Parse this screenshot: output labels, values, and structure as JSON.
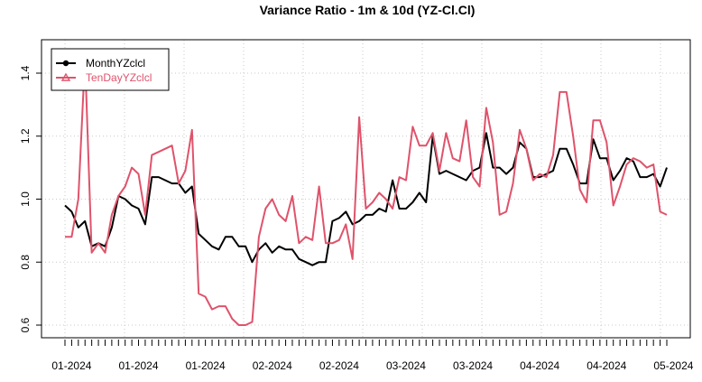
{
  "chart_data": {
    "type": "line",
    "title": "Variance Ratio - 1m & 10d (YZ-Cl.Cl)",
    "xlabel": "",
    "ylabel": "",
    "ylim": [
      0.55,
      1.5
    ],
    "y_ticks": [
      0.6,
      0.8,
      1.0,
      1.2,
      1.4
    ],
    "y_tick_labels": [
      "0.6",
      "0.8",
      "1.0",
      "1.2",
      "1.4"
    ],
    "x_tick_labels": [
      "01-2024",
      "01-2024",
      "01-2024",
      "02-2024",
      "02-2024",
      "03-2024",
      "03-2024",
      "04-2024",
      "04-2024",
      "05-2024"
    ],
    "x_label_index": [
      1,
      11,
      21,
      31,
      41,
      51,
      61,
      71,
      81,
      91
    ],
    "grid": true,
    "legend_position": "top-left",
    "series": [
      {
        "name": "MonthYZclcl",
        "color": "#000000",
        "marker": "circle",
        "values": [
          0.98,
          0.96,
          0.91,
          0.93,
          0.85,
          0.86,
          0.85,
          0.91,
          1.01,
          1.0,
          0.98,
          0.97,
          0.92,
          1.07,
          1.07,
          1.06,
          1.05,
          1.05,
          1.02,
          1.04,
          0.89,
          0.87,
          0.85,
          0.84,
          0.88,
          0.88,
          0.85,
          0.85,
          0.8,
          0.84,
          0.86,
          0.83,
          0.85,
          0.84,
          0.84,
          0.81,
          0.8,
          0.79,
          0.8,
          0.8,
          0.93,
          0.94,
          0.96,
          0.92,
          0.93,
          0.95,
          0.95,
          0.97,
          0.96,
          1.06,
          0.97,
          0.97,
          0.99,
          1.02,
          0.99,
          1.2,
          1.08,
          1.09,
          1.08,
          1.07,
          1.06,
          1.09,
          1.1,
          1.21,
          1.1,
          1.1,
          1.08,
          1.1,
          1.18,
          1.16,
          1.07,
          1.07,
          1.08,
          1.09,
          1.16,
          1.16,
          1.11,
          1.05,
          1.05,
          1.19,
          1.13,
          1.13,
          1.06,
          1.09,
          1.13,
          1.12,
          1.07,
          1.07,
          1.08,
          1.04,
          1.1
        ]
      },
      {
        "name": "TenDayYZclcl",
        "color": "#DF536B",
        "marker": "triangle",
        "values": [
          0.88,
          0.88,
          1.0,
          1.45,
          0.83,
          0.86,
          0.83,
          0.95,
          1.01,
          1.04,
          1.1,
          1.08,
          0.95,
          1.14,
          1.15,
          1.16,
          1.17,
          1.05,
          1.09,
          1.22,
          0.7,
          0.69,
          0.65,
          0.66,
          0.66,
          0.62,
          0.6,
          0.6,
          0.61,
          0.88,
          0.97,
          1.0,
          0.95,
          0.93,
          1.01,
          0.86,
          0.88,
          0.87,
          1.04,
          0.86,
          0.86,
          0.87,
          0.92,
          0.81,
          1.26,
          0.97,
          0.99,
          1.02,
          1.0,
          0.97,
          1.07,
          1.06,
          1.23,
          1.17,
          1.17,
          1.21,
          1.09,
          1.21,
          1.13,
          1.12,
          1.25,
          1.07,
          1.04,
          1.29,
          1.18,
          0.95,
          0.96,
          1.05,
          1.22,
          1.16,
          1.06,
          1.08,
          1.07,
          1.14,
          1.34,
          1.34,
          1.2,
          1.03,
          0.99,
          1.25,
          1.25,
          1.18,
          0.98,
          1.04,
          1.11,
          1.13,
          1.12,
          1.1,
          1.11,
          0.96,
          0.95
        ]
      }
    ]
  }
}
